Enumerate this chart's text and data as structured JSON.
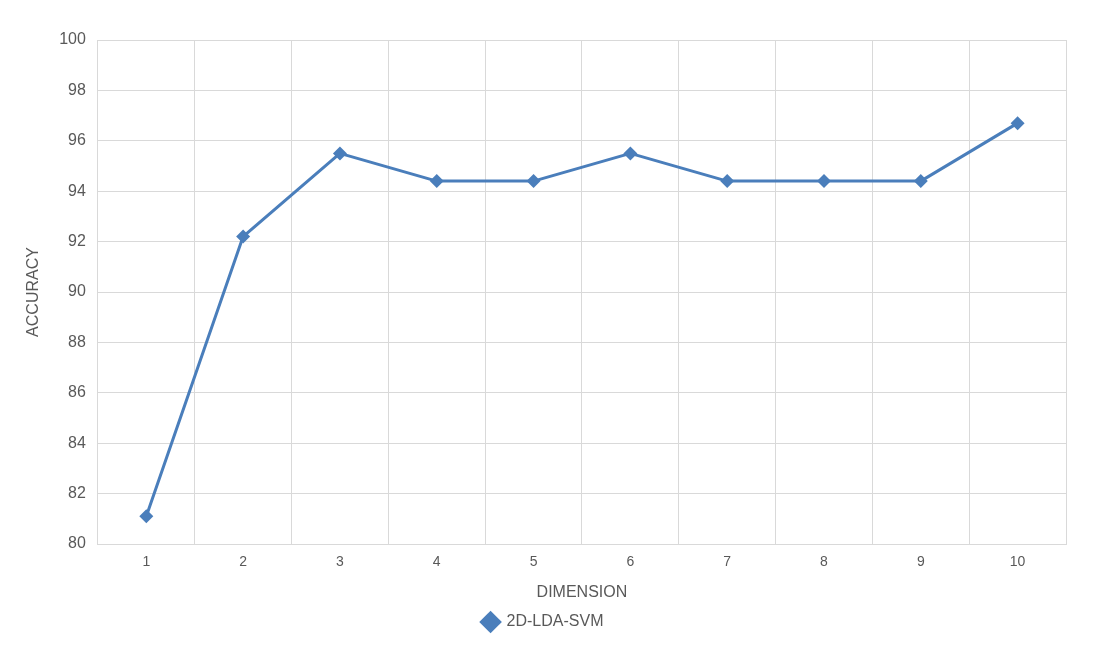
{
  "chart_data": {
    "type": "line",
    "xlabel": "DIMENSION",
    "ylabel": "ACCURACY",
    "categories": [
      "1",
      "2",
      "3",
      "4",
      "5",
      "6",
      "7",
      "8",
      "9",
      "10"
    ],
    "series": [
      {
        "name": "2D-LDA-SVM",
        "color": "#4a7ebb",
        "values": [
          81.1,
          92.2,
          95.5,
          94.4,
          94.4,
          95.5,
          94.4,
          94.4,
          94.4,
          96.7
        ]
      }
    ],
    "ylim": [
      80,
      100
    ],
    "yticks": [
      80,
      82,
      84,
      86,
      88,
      90,
      92,
      94,
      96,
      98,
      100
    ],
    "grid": true,
    "legend": "bottom",
    "marker": "diamond",
    "line_style": "solid"
  }
}
